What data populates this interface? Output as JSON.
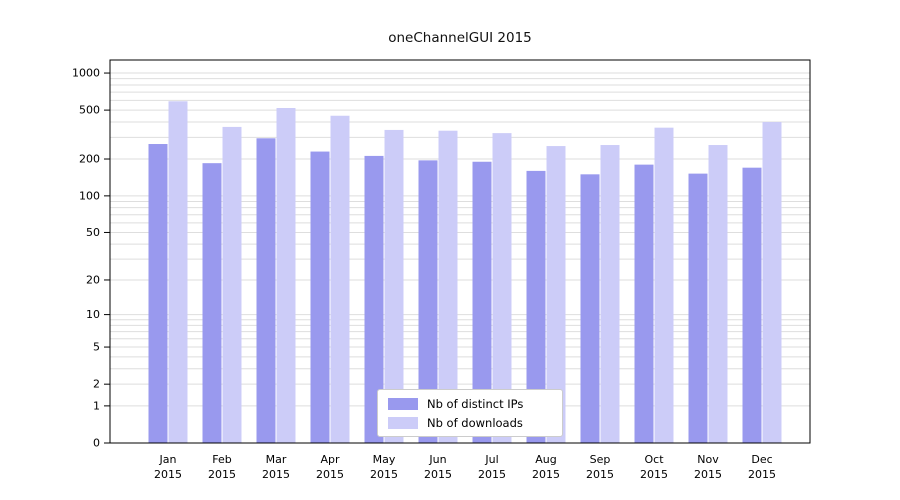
{
  "page": {
    "background": "#ffffff"
  },
  "chart_data": {
    "type": "bar",
    "title": "oneChannelGUI 2015",
    "scale": "log1p",
    "grid": true,
    "legend_position": "inside-bottom-center",
    "categories": [
      "Jan",
      "Feb",
      "Mar",
      "Apr",
      "May",
      "Jun",
      "Jul",
      "Aug",
      "Sep",
      "Oct",
      "Nov",
      "Dec"
    ],
    "year_label": "2015",
    "series": [
      {
        "key": "distinct-ips",
        "name": "Nb of distinct IPs",
        "color": "#9999ee",
        "values": [
          265,
          185,
          295,
          230,
          212,
          195,
          190,
          160,
          150,
          180,
          152,
          170
        ]
      },
      {
        "key": "downloads",
        "name": "Nb of downloads",
        "color": "#ccccf8",
        "values": [
          590,
          365,
          520,
          450,
          345,
          340,
          325,
          255,
          260,
          360,
          260,
          400
        ]
      }
    ],
    "y_ticks": [
      0,
      1,
      2,
      5,
      10,
      20,
      50,
      100,
      200,
      500,
      1000
    ],
    "ylim": [
      0,
      1000
    ],
    "colors": {
      "gridline": "#dedede",
      "axis": "#000000"
    }
  }
}
